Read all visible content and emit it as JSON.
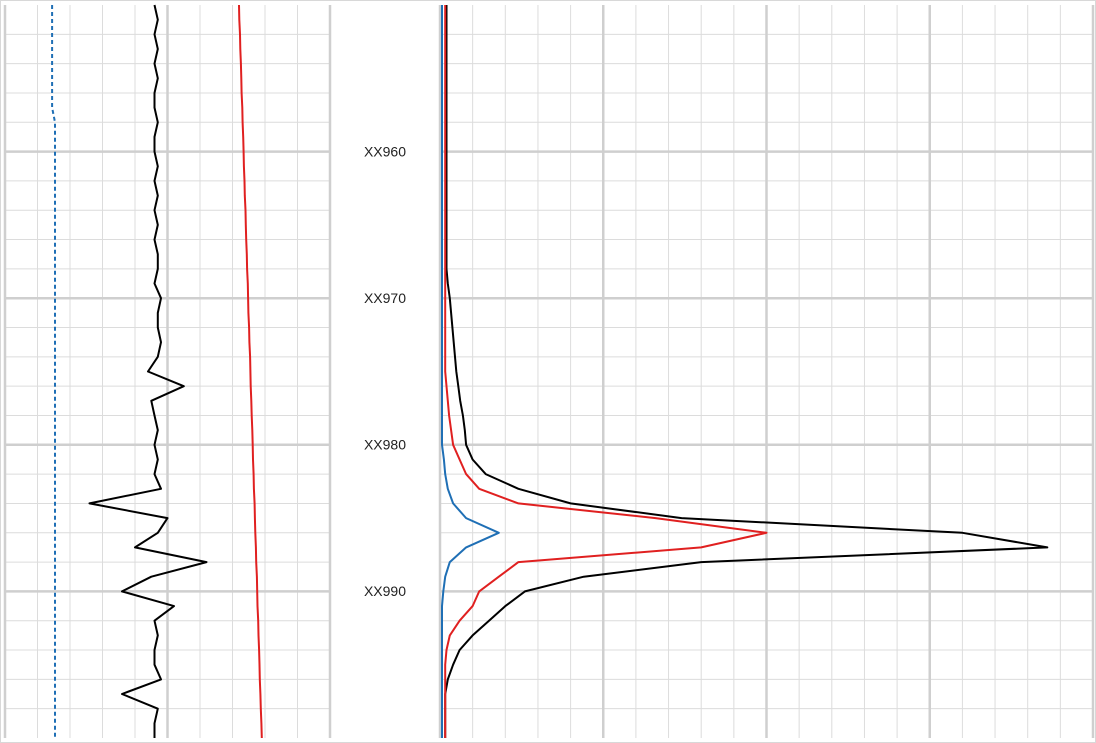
{
  "chart_data": [
    {
      "type": "line",
      "ylim": [
        950,
        1000
      ],
      "yticks": [
        960,
        970,
        980,
        990
      ],
      "xlim": [
        0,
        100
      ],
      "xticks": [
        0,
        50,
        100
      ],
      "grid": true,
      "y_reversed": true,
      "depth": [
        950,
        951,
        952,
        953,
        954,
        955,
        956,
        957,
        958,
        959,
        960,
        961,
        962,
        963,
        964,
        965,
        966,
        967,
        968,
        969,
        970,
        971,
        972,
        973,
        974,
        975,
        976,
        977,
        978,
        979,
        980,
        981,
        982,
        983,
        984,
        985,
        986,
        987,
        988,
        989,
        990,
        991,
        992,
        993,
        994,
        995,
        996,
        997,
        998,
        999,
        1000
      ],
      "series": [
        {
          "color": "#1f6fb5",
          "dashed": true,
          "values": [
            14.5,
            14.5,
            14.5,
            14.5,
            14.5,
            14.5,
            14.5,
            14.5,
            15.4,
            15.4,
            15.4,
            15.4,
            15.4,
            15.4,
            15.4,
            15.4,
            15.4,
            15.4,
            15.4,
            15.4,
            15.4,
            15.4,
            15.4,
            15.4,
            15.4,
            15.4,
            15.4,
            15.4,
            15.4,
            15.4,
            15.4,
            15.4,
            15.4,
            15.4,
            15.4,
            15.4,
            15.4,
            15.4,
            15.4,
            15.4,
            15.4,
            15.4,
            15.4,
            15.4,
            15.4,
            15.4,
            15.4,
            15.4,
            15.4,
            15.4,
            15.4
          ]
        },
        {
          "color": "#000000",
          "values": [
            46,
            47,
            46,
            47,
            46,
            47,
            46,
            46,
            47,
            46,
            46,
            47,
            46,
            47,
            46,
            47,
            46,
            47,
            47,
            46,
            48,
            47,
            47,
            48,
            47,
            44,
            55,
            45,
            46,
            47,
            46,
            47,
            46,
            48,
            26,
            50,
            47,
            40,
            62,
            45,
            36,
            52,
            46,
            47,
            46,
            46,
            48,
            36,
            47,
            46,
            46
          ]
        },
        {
          "color": "#e02020",
          "values": [
            72,
            72.1,
            72.3,
            72.4,
            72.6,
            72.7,
            72.8,
            73,
            73.1,
            73.3,
            73.4,
            73.5,
            73.7,
            73.8,
            74,
            74.1,
            74.2,
            74.4,
            74.5,
            74.7,
            74.8,
            74.9,
            75.1,
            75.2,
            75.4,
            75.5,
            75.6,
            75.8,
            75.9,
            76.1,
            76.2,
            76.3,
            76.5,
            76.6,
            76.8,
            76.9,
            77,
            77.2,
            77.3,
            77.5,
            77.6,
            77.7,
            77.9,
            78,
            78.2,
            78.3,
            78.4,
            78.6,
            78.7,
            78.9,
            79
          ]
        }
      ]
    },
    {
      "type": "line",
      "ylim": [
        950,
        1000
      ],
      "yticks": [
        {
          "value": 960,
          "label": "XX960"
        },
        {
          "value": 970,
          "label": "XX970"
        },
        {
          "value": 980,
          "label": "XX980"
        },
        {
          "value": 990,
          "label": "XX990"
        }
      ],
      "xlim": [
        0,
        100
      ],
      "xticks": [
        0,
        25,
        50,
        75,
        100
      ],
      "grid": true,
      "y_reversed": true,
      "depth": [
        950,
        951,
        952,
        953,
        954,
        955,
        956,
        957,
        958,
        959,
        960,
        961,
        962,
        963,
        964,
        965,
        966,
        967,
        968,
        969,
        970,
        971,
        972,
        973,
        974,
        975,
        976,
        977,
        978,
        979,
        980,
        981,
        982,
        983,
        984,
        985,
        986,
        987,
        988,
        989,
        990,
        991,
        992,
        993,
        994,
        995,
        996,
        997,
        998,
        999,
        1000
      ],
      "series": [
        {
          "color": "#000000",
          "values": [
            1,
            1,
            1,
            1,
            1,
            1,
            1,
            1,
            1,
            1,
            1,
            1,
            1,
            1,
            1,
            1,
            1,
            1,
            1,
            1.2,
            1.5,
            1.7,
            1.9,
            2.1,
            2.3,
            2.5,
            2.8,
            3.1,
            3.5,
            3.8,
            4,
            5,
            7,
            12,
            20,
            37,
            80,
            93,
            40,
            22,
            13,
            10,
            7.5,
            5,
            3,
            2,
            1.2,
            0.8,
            0.8,
            0.8,
            0.8
          ]
        },
        {
          "color": "#e02020",
          "values": [
            0.8,
            0.8,
            0.8,
            0.8,
            0.8,
            0.8,
            0.8,
            0.8,
            0.8,
            0.8,
            0.8,
            0.8,
            0.8,
            0.8,
            0.8,
            0.8,
            0.8,
            0.8,
            0.8,
            0.8,
            0.8,
            0.8,
            0.8,
            0.8,
            0.8,
            0.8,
            1,
            1.2,
            1.4,
            1.7,
            2,
            3,
            4,
            6,
            12,
            33,
            50,
            40,
            12,
            9,
            6,
            5,
            3,
            1.5,
            1,
            0.8,
            0.8,
            0.8,
            0.8,
            0.8,
            0.8
          ]
        },
        {
          "color": "#1f6fb5",
          "values": [
            0.3,
            0.3,
            0.3,
            0.3,
            0.3,
            0.3,
            0.3,
            0.3,
            0.3,
            0.3,
            0.3,
            0.3,
            0.3,
            0.3,
            0.3,
            0.3,
            0.3,
            0.3,
            0.3,
            0.3,
            0.3,
            0.3,
            0.3,
            0.3,
            0.3,
            0.3,
            0.3,
            0.3,
            0.3,
            0.3,
            0.3,
            0.6,
            0.8,
            1.2,
            2,
            4,
            9,
            4,
            1.5,
            0.8,
            0.5,
            0.3,
            0.3,
            0.3,
            0.3,
            0.3,
            0.3,
            0.3,
            0.3,
            0.3,
            0.3
          ]
        }
      ]
    }
  ]
}
